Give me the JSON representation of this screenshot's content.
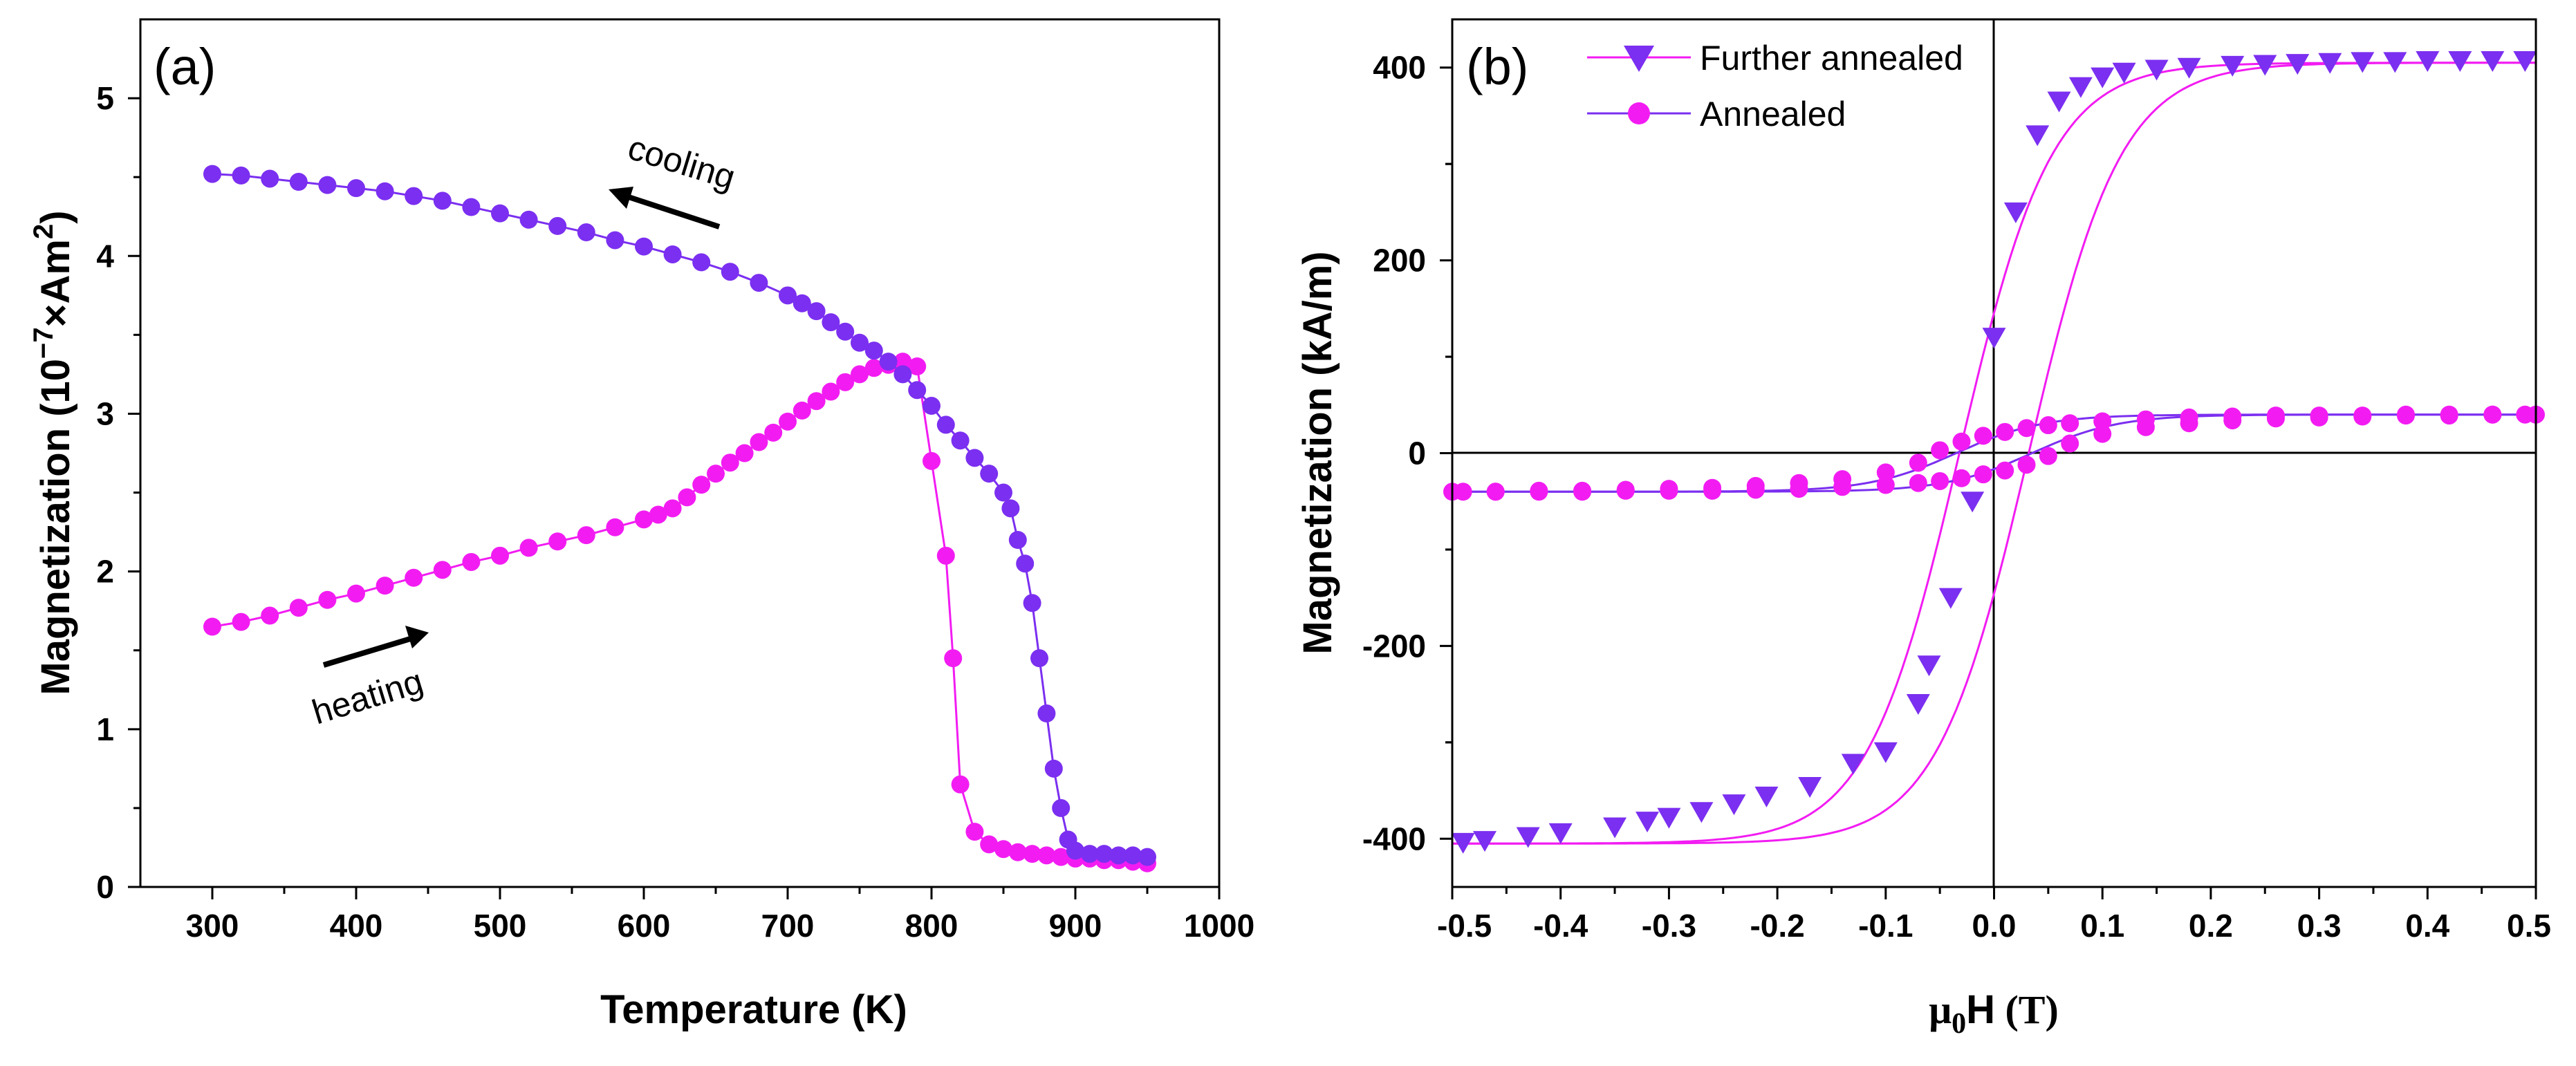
{
  "colors": {
    "violet": "#7B2FF0",
    "magenta": "#F21CF2",
    "axis": "#000000"
  },
  "chart_data": [
    {
      "type": "scatter",
      "panel": "(a)",
      "xlabel": "Temperature (K)",
      "ylabel": "Magnetization (10^-7 ×Am²)",
      "ylabel_parts": {
        "base": "Magnetization (10",
        "exp": "−7",
        "mid": "×Am",
        "exp2": "2",
        "end": ")"
      },
      "xlim": [
        250,
        1000
      ],
      "ylim": [
        0,
        5.5
      ],
      "xticks": [
        300,
        400,
        500,
        600,
        700,
        800,
        900,
        1000
      ],
      "yticks": [
        0,
        1,
        2,
        3,
        4,
        5
      ],
      "annotations": [
        {
          "text": "cooling",
          "direction": "left"
        },
        {
          "text": "heating",
          "direction": "right"
        }
      ],
      "series": [
        {
          "name": "heating",
          "color": "magenta",
          "x": [
            300,
            320,
            340,
            360,
            380,
            400,
            420,
            440,
            460,
            480,
            500,
            520,
            540,
            560,
            580,
            600,
            610,
            620,
            630,
            640,
            650,
            660,
            670,
            680,
            690,
            700,
            710,
            720,
            730,
            740,
            750,
            760,
            770,
            780,
            790,
            800,
            810,
            815,
            820,
            830,
            840,
            850,
            860,
            870,
            880,
            890,
            900,
            910,
            920,
            930,
            940,
            950
          ],
          "y": [
            1.65,
            1.68,
            1.72,
            1.77,
            1.82,
            1.86,
            1.91,
            1.96,
            2.01,
            2.06,
            2.1,
            2.15,
            2.19,
            2.23,
            2.28,
            2.33,
            2.36,
            2.4,
            2.47,
            2.55,
            2.62,
            2.69,
            2.75,
            2.82,
            2.88,
            2.95,
            3.02,
            3.08,
            3.14,
            3.2,
            3.25,
            3.29,
            3.31,
            3.33,
            3.3,
            2.7,
            2.1,
            1.45,
            0.65,
            0.35,
            0.27,
            0.24,
            0.22,
            0.21,
            0.2,
            0.19,
            0.18,
            0.18,
            0.17,
            0.17,
            0.16,
            0.15
          ]
        },
        {
          "name": "cooling",
          "color": "violet",
          "x": [
            950,
            940,
            930,
            920,
            910,
            900,
            895,
            890,
            885,
            880,
            875,
            870,
            865,
            860,
            855,
            850,
            840,
            830,
            820,
            810,
            800,
            790,
            780,
            770,
            760,
            750,
            740,
            730,
            720,
            710,
            700,
            680,
            660,
            640,
            620,
            600,
            580,
            560,
            540,
            520,
            500,
            480,
            460,
            440,
            420,
            400,
            380,
            360,
            340,
            320,
            300
          ],
          "y": [
            0.19,
            0.2,
            0.2,
            0.21,
            0.21,
            0.23,
            0.3,
            0.5,
            0.75,
            1.1,
            1.45,
            1.8,
            2.05,
            2.2,
            2.4,
            2.5,
            2.62,
            2.72,
            2.83,
            2.93,
            3.05,
            3.15,
            3.25,
            3.33,
            3.4,
            3.45,
            3.52,
            3.58,
            3.65,
            3.7,
            3.75,
            3.83,
            3.9,
            3.96,
            4.01,
            4.06,
            4.1,
            4.15,
            4.19,
            4.23,
            4.27,
            4.31,
            4.35,
            4.38,
            4.41,
            4.43,
            4.45,
            4.47,
            4.49,
            4.51,
            4.52
          ]
        }
      ]
    },
    {
      "type": "scatter",
      "panel": "(b)",
      "xlabel": "μ0H (T)",
      "xlabel_parts": {
        "mu": "μ",
        "sub": "0",
        "h": "H",
        "unit": " (T)"
      },
      "ylabel": "Magnetization (kA/m)",
      "xlim": [
        -0.5,
        0.5
      ],
      "ylim": [
        -450,
        450
      ],
      "xticks": [
        -0.5,
        -0.4,
        -0.3,
        -0.2,
        -0.1,
        0.0,
        0.1,
        0.2,
        0.3,
        0.4,
        0.5
      ],
      "xtick_labels": [
        "-0.5",
        "-0.4",
        "-0.3",
        "-0.2",
        "-0.1",
        "0.0",
        "0.1",
        "0.2",
        "0.3",
        "0.4",
        "0.5"
      ],
      "yticks": [
        -400,
        -200,
        0,
        200,
        400
      ],
      "legend": {
        "position": "top-left"
      },
      "series": [
        {
          "name": "Further annealed",
          "marker": "triangle-down",
          "color": "violet",
          "x": [
            -0.49,
            -0.47,
            -0.43,
            -0.4,
            -0.35,
            -0.32,
            -0.3,
            -0.27,
            -0.24,
            -0.21,
            -0.17,
            -0.13,
            -0.1,
            -0.07,
            -0.06,
            -0.04,
            -0.02,
            0.0,
            0.02,
            0.04,
            0.06,
            0.08,
            0.1,
            0.12,
            0.15,
            0.18,
            0.22,
            0.25,
            0.28,
            0.31,
            0.34,
            0.37,
            0.4,
            0.43,
            0.46,
            0.49
          ],
          "y": [
            -404,
            -402,
            -398,
            -394,
            -388,
            -382,
            -378,
            -372,
            -364,
            -356,
            -346,
            -322,
            -310,
            -260,
            -220,
            -150,
            -50,
            120,
            250,
            330,
            365,
            380,
            390,
            395,
            398,
            400,
            402,
            403,
            404,
            405,
            406,
            406,
            407,
            407,
            407,
            407
          ]
        },
        {
          "name": "Annealed",
          "marker": "circle",
          "color": "magenta",
          "x": [
            -0.5,
            -0.46,
            -0.42,
            -0.38,
            -0.34,
            -0.3,
            -0.26,
            -0.22,
            -0.18,
            -0.14,
            -0.1,
            -0.07,
            -0.05,
            -0.03,
            -0.01,
            0.01,
            0.03,
            0.05,
            0.07,
            0.1,
            0.14,
            0.18,
            0.22,
            0.26,
            0.3,
            0.34,
            0.38,
            0.42,
            0.46,
            0.49
          ],
          "y": [
            -40,
            -40,
            -39,
            -39,
            -38,
            -37,
            -36,
            -34,
            -31,
            -27,
            -20,
            -10,
            3,
            12,
            18,
            22,
            26,
            29,
            31,
            33,
            35,
            37,
            38,
            39,
            39,
            39,
            40,
            40,
            40,
            40
          ]
        }
      ]
    }
  ]
}
